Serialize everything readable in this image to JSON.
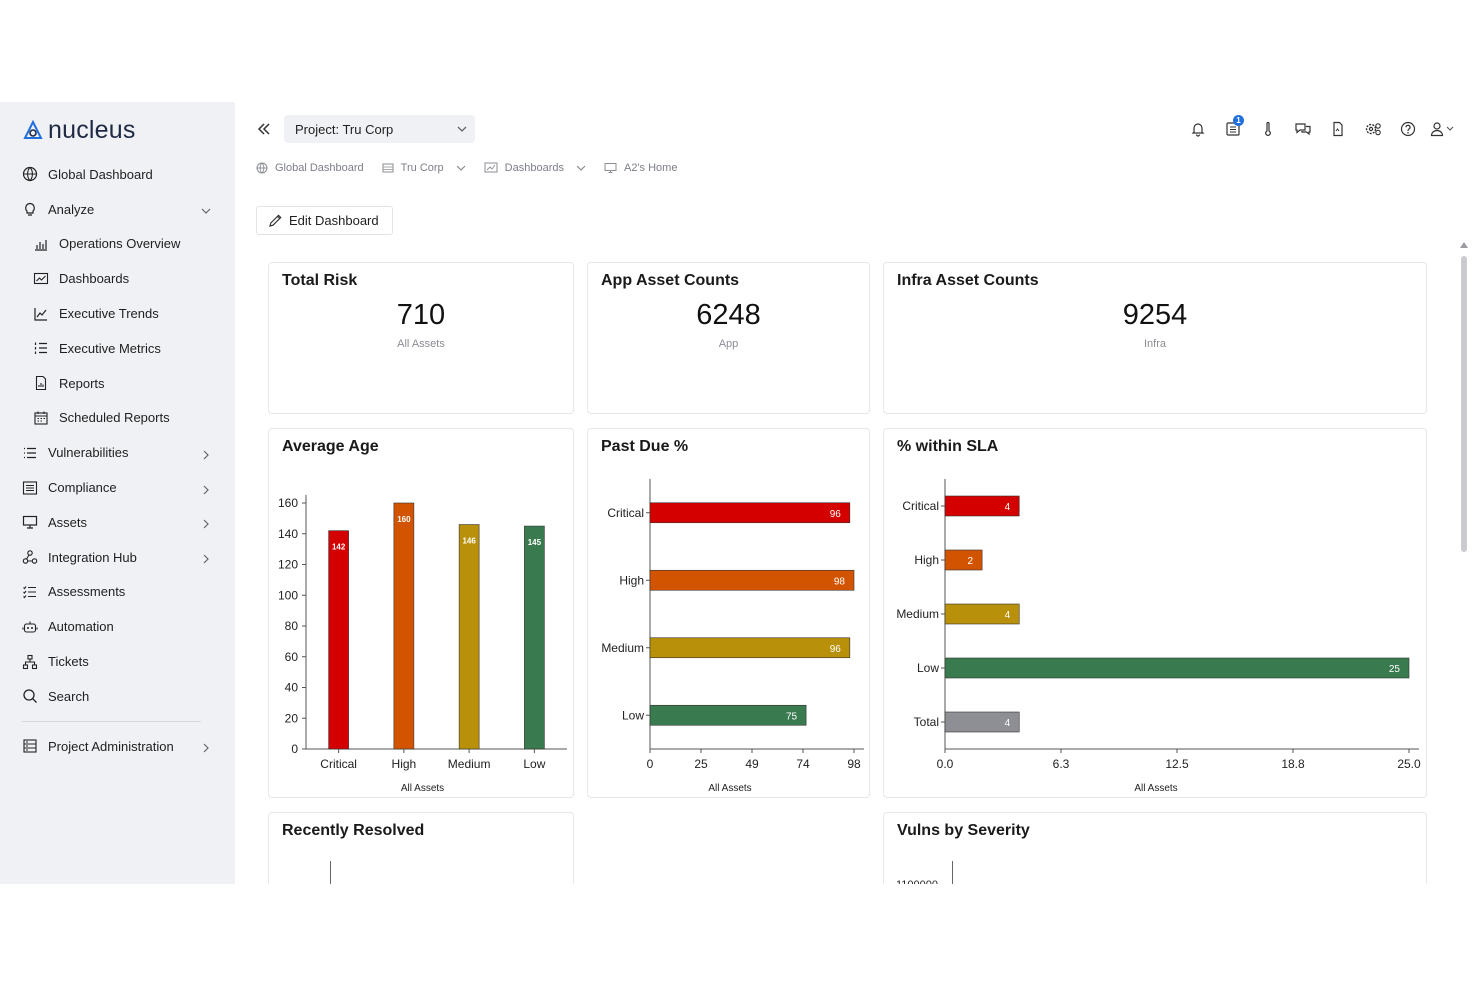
{
  "app": {
    "logo_text": "nucleus"
  },
  "sidebar": {
    "items": [
      {
        "label": "Global Dashboard",
        "icon": "globe-icon"
      },
      {
        "label": "Analyze",
        "icon": "lightbulb-icon"
      },
      {
        "label": "Operations Overview",
        "icon": "bar-chart-icon"
      },
      {
        "label": "Dashboards",
        "icon": "dashboard-icon"
      },
      {
        "label": "Executive Trends",
        "icon": "trend-icon"
      },
      {
        "label": "Executive Metrics",
        "icon": "list-numbered-icon"
      },
      {
        "label": "Reports",
        "icon": "report-icon"
      },
      {
        "label": "Scheduled Reports",
        "icon": "calendar-icon"
      },
      {
        "label": "Vulnerabilities",
        "icon": "list-icon"
      },
      {
        "label": "Compliance",
        "icon": "compliance-icon"
      },
      {
        "label": "Assets",
        "icon": "monitor-icon"
      },
      {
        "label": "Integration Hub",
        "icon": "integration-icon"
      },
      {
        "label": "Assessments",
        "icon": "checklist-icon"
      },
      {
        "label": "Automation",
        "icon": "robot-icon"
      },
      {
        "label": "Tickets",
        "icon": "tickets-icon"
      },
      {
        "label": "Search",
        "icon": "search-icon"
      },
      {
        "label": "Project Administration",
        "icon": "server-icon"
      }
    ]
  },
  "header": {
    "project_label": "Project: Tru Corp",
    "notification_badge": "1",
    "breadcrumb": [
      "Global Dashboard",
      "Tru Corp",
      "Dashboards",
      "A2's Home"
    ],
    "edit_label": "Edit Dashboard"
  },
  "cards": {
    "total_risk": {
      "title": "Total Risk",
      "value": "710",
      "sub": "All Assets"
    },
    "app_assets": {
      "title": "App Asset Counts",
      "value": "6248",
      "sub": "App"
    },
    "infra_assets": {
      "title": "Infra Asset Counts",
      "value": "9254",
      "sub": "Infra"
    },
    "avg_age": {
      "title": "Average Age"
    },
    "past_due": {
      "title": "Past Due %"
    },
    "within_sla": {
      "title": "% within SLA"
    },
    "recently_resolved": {
      "title": "Recently Resolved"
    },
    "vulns_severity": {
      "title": "Vulns by Severity",
      "partial_tick": "1100000"
    }
  },
  "colors": {
    "critical": "#d40000",
    "high": "#d35400",
    "medium": "#b8900a",
    "low": "#3a7a4f",
    "total": "#8e8e95"
  },
  "chart_data": [
    {
      "type": "bar",
      "title": "Average Age",
      "categories": [
        "Critical",
        "High",
        "Medium",
        "Low"
      ],
      "values": [
        142,
        160,
        146,
        145
      ],
      "xlabel": "All Assets",
      "ylabel": "",
      "ylim": [
        0,
        160
      ],
      "yticks": [
        0,
        20,
        40,
        60,
        80,
        100,
        120,
        140,
        160
      ]
    },
    {
      "type": "bar",
      "orientation": "horizontal",
      "title": "Past Due %",
      "categories": [
        "Critical",
        "High",
        "Medium",
        "Low"
      ],
      "values": [
        96,
        98,
        96,
        75
      ],
      "xlabel": "All Assets",
      "xlim": [
        0,
        98
      ],
      "xticks": [
        0,
        25,
        49,
        74,
        98
      ]
    },
    {
      "type": "bar",
      "orientation": "horizontal",
      "title": "% within SLA",
      "categories": [
        "Critical",
        "High",
        "Medium",
        "Low",
        "Total"
      ],
      "values": [
        4,
        2,
        4,
        25,
        4
      ],
      "xlabel": "All Assets",
      "xlim": [
        0,
        25
      ],
      "xticks": [
        "0.0",
        "6.3",
        "12.5",
        "18.8",
        "25.0"
      ]
    }
  ]
}
